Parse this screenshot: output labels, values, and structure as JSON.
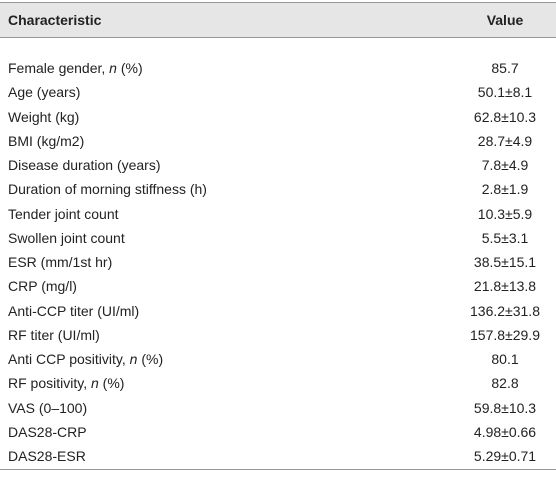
{
  "table": {
    "header": [
      "Characteristic",
      "Value"
    ],
    "rows": [
      [
        [
          "Female gender, ",
          "n",
          " (%)"
        ],
        "85.7"
      ],
      [
        "Age (years)",
        "50.1±8.1"
      ],
      [
        "Weight (kg)",
        "62.8±10.3"
      ],
      [
        "BMI (kg/m2)",
        "28.7±4.9"
      ],
      [
        "Disease duration (years)",
        "7.8±4.9"
      ],
      [
        "Duration of morning stiffness (h)",
        "2.8±1.9"
      ],
      [
        "Tender joint count",
        "10.3±5.9"
      ],
      [
        "Swollen joint count",
        "5.5±3.1"
      ],
      [
        "ESR (mm/1st hr)",
        "38.5±15.1"
      ],
      [
        "CRP (mg/l)",
        "21.8±13.8"
      ],
      [
        "Anti-CCP titer (UI/ml)",
        "136.2±31.8"
      ],
      [
        "RF titer (UI/ml)",
        "157.8±29.9"
      ],
      [
        [
          "Anti CCP positivity, ",
          "n",
          " (%)"
        ],
        "80.1"
      ],
      [
        [
          "RF positivity, ",
          "n",
          " (%)"
        ],
        "82.8"
      ],
      [
        "VAS (0–100)",
        "59.8±10.3"
      ],
      [
        "DAS28-CRP",
        "4.98±0.66"
      ],
      [
        "DAS28-ESR",
        "5.29±0.71"
      ]
    ]
  }
}
